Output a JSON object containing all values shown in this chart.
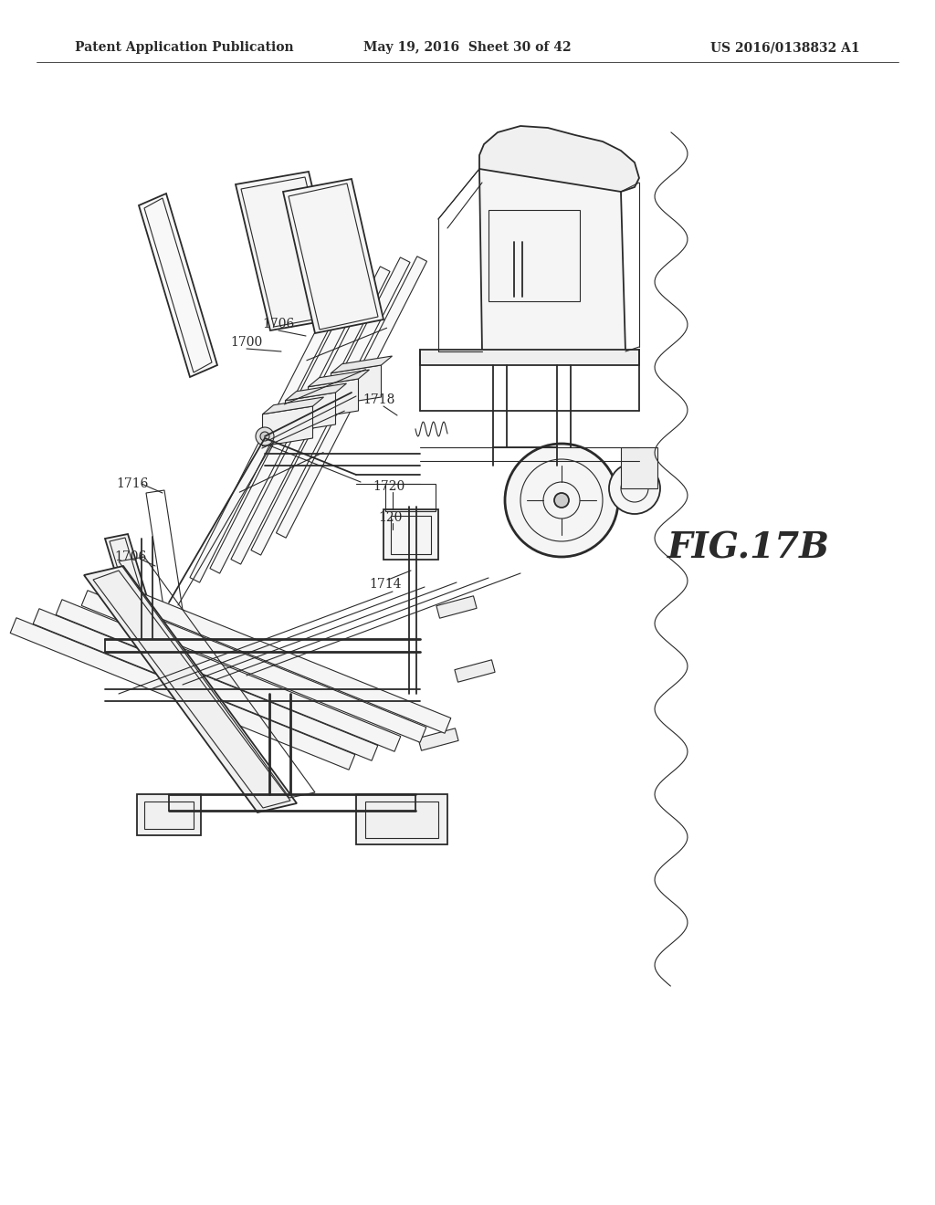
{
  "title_left": "Patent Application Publication",
  "title_mid": "May 19, 2016  Sheet 30 of 42",
  "title_right": "US 2016/0138832 A1",
  "fig_label": "FIG.17B",
  "background_color": "#ffffff",
  "line_color": "#2a2a2a",
  "label_color": "#2a2a2a",
  "header_fontsize": 10,
  "fig_label_fontsize": 28,
  "ref_fontsize": 10,
  "lw_thin": 0.8,
  "lw_med": 1.3,
  "lw_thick": 2.0
}
